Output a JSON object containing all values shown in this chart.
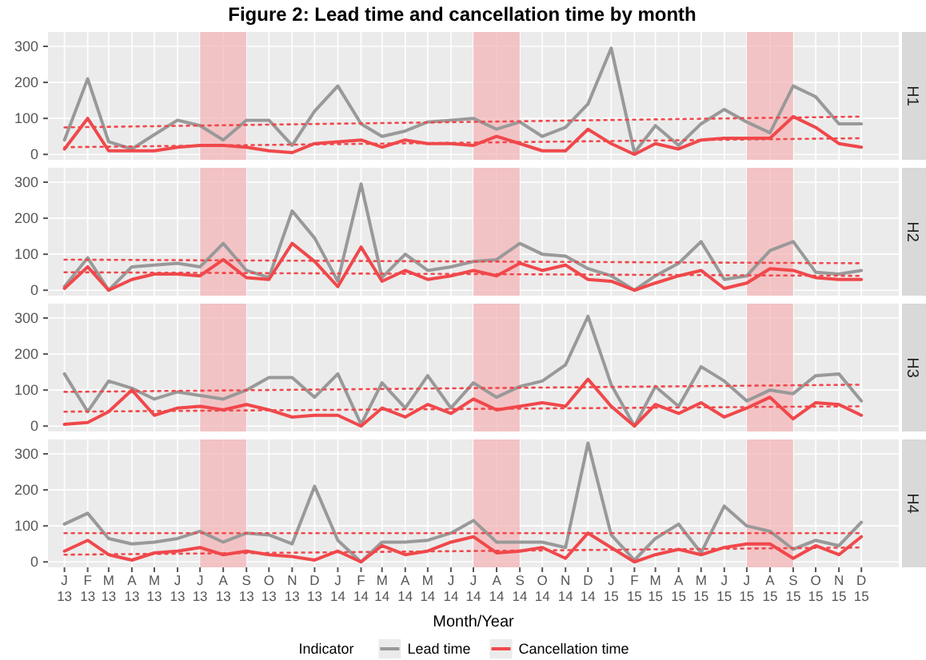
{
  "chart_data": [
    {
      "type": "line",
      "title": "H1",
      "annotations": [
        "Figure 2: Lead time and cancellation time by month"
      ],
      "x": [
        "2013-01",
        "2013-02",
        "2013-03",
        "2013-04",
        "2013-05",
        "2013-06",
        "2013-07",
        "2013-08",
        "2013-09",
        "2013-10",
        "2013-11",
        "2013-12",
        "2014-01",
        "2014-02",
        "2014-03",
        "2014-04",
        "2014-05",
        "2014-06",
        "2014-07",
        "2014-08",
        "2014-09",
        "2014-10",
        "2014-11",
        "2014-12",
        "2015-01",
        "2015-02",
        "2015-03",
        "2015-04",
        "2015-05",
        "2015-06",
        "2015-07",
        "2015-08",
        "2015-09",
        "2015-10",
        "2015-11",
        "2015-12"
      ],
      "xlim": [
        "2012-12-10",
        "2016-01-20"
      ],
      "ylim": [
        -15,
        340
      ],
      "yticks": [
        0,
        100,
        200,
        300
      ],
      "grid": true,
      "legend": false,
      "tick_labels": "y",
      "bands": [
        {
          "axis": "x",
          "from": "2013-07",
          "to": "2013-09",
          "color": "#f4b6b8"
        },
        {
          "axis": "x",
          "from": "2014-07",
          "to": "2014-09",
          "color": "#f4b6b8"
        },
        {
          "axis": "x",
          "from": "2015-07",
          "to": "2015-09",
          "color": "#f4b6b8"
        }
      ],
      "series": [
        {
          "color": "#999999",
          "values": [
            40,
            210,
            35,
            15,
            55,
            95,
            80,
            40,
            95,
            95,
            25,
            120,
            190,
            85,
            50,
            65,
            90,
            95,
            100,
            70,
            90,
            50,
            75,
            140,
            295,
            5,
            80,
            25,
            85,
            125,
            90,
            60,
            190,
            160,
            85,
            85
          ]
        },
        {
          "color": "#f0484b",
          "values": [
            15,
            100,
            10,
            10,
            10,
            20,
            25,
            25,
            20,
            10,
            5,
            30,
            35,
            40,
            20,
            40,
            30,
            30,
            25,
            50,
            30,
            10,
            10,
            70,
            30,
            0,
            30,
            15,
            40,
            45,
            45,
            45,
            105,
            75,
            30,
            20
          ]
        },
        {
          "color": "#f0484b",
          "line_style": "dotted",
          "x": [
            "2013-01",
            "2015-12"
          ],
          "values": [
            75,
            105
          ]
        },
        {
          "color": "#f0484b",
          "line_style": "dotted",
          "x": [
            "2013-01",
            "2015-12"
          ],
          "values": [
            20,
            45
          ]
        }
      ]
    },
    {
      "type": "line",
      "title": "H2",
      "x": [
        "2013-01",
        "2013-02",
        "2013-03",
        "2013-04",
        "2013-05",
        "2013-06",
        "2013-07",
        "2013-08",
        "2013-09",
        "2013-10",
        "2013-11",
        "2013-12",
        "2014-01",
        "2014-02",
        "2014-03",
        "2014-04",
        "2014-05",
        "2014-06",
        "2014-07",
        "2014-08",
        "2014-09",
        "2014-10",
        "2014-11",
        "2014-12",
        "2015-01",
        "2015-02",
        "2015-03",
        "2015-04",
        "2015-05",
        "2015-06",
        "2015-07",
        "2015-08",
        "2015-09",
        "2015-10",
        "2015-11",
        "2015-12"
      ],
      "xlim": [
        "2012-12-10",
        "2016-01-20"
      ],
      "ylim": [
        -15,
        340
      ],
      "yticks": [
        0,
        100,
        200,
        300
      ],
      "grid": true,
      "legend": false,
      "tick_labels": "y",
      "bands": [
        {
          "axis": "x",
          "from": "2013-07",
          "to": "2013-09",
          "color": "#f4b6b8"
        },
        {
          "axis": "x",
          "from": "2014-07",
          "to": "2014-09",
          "color": "#f4b6b8"
        },
        {
          "axis": "x",
          "from": "2015-07",
          "to": "2015-09",
          "color": "#f4b6b8"
        }
      ],
      "series": [
        {
          "color": "#999999",
          "values": [
            10,
            90,
            0,
            65,
            70,
            75,
            65,
            130,
            55,
            35,
            220,
            145,
            25,
            295,
            35,
            100,
            55,
            65,
            80,
            85,
            130,
            100,
            95,
            60,
            40,
            0,
            40,
            75,
            135,
            30,
            40,
            110,
            135,
            50,
            45,
            55
          ]
        },
        {
          "color": "#f0484b",
          "values": [
            5,
            65,
            0,
            30,
            45,
            45,
            40,
            85,
            35,
            30,
            130,
            80,
            10,
            120,
            25,
            55,
            30,
            40,
            55,
            40,
            75,
            55,
            70,
            30,
            25,
            0,
            20,
            40,
            55,
            5,
            20,
            60,
            55,
            35,
            30,
            30
          ]
        },
        {
          "color": "#f0484b",
          "line_style": "dotted",
          "x": [
            "2013-01",
            "2015-12"
          ],
          "values": [
            85,
            75
          ]
        },
        {
          "color": "#f0484b",
          "line_style": "dotted",
          "x": [
            "2013-01",
            "2015-12"
          ],
          "values": [
            50,
            40
          ]
        }
      ]
    },
    {
      "type": "line",
      "title": "H3",
      "x": [
        "2013-01",
        "2013-02",
        "2013-03",
        "2013-04",
        "2013-05",
        "2013-06",
        "2013-07",
        "2013-08",
        "2013-09",
        "2013-10",
        "2013-11",
        "2013-12",
        "2014-01",
        "2014-02",
        "2014-03",
        "2014-04",
        "2014-05",
        "2014-06",
        "2014-07",
        "2014-08",
        "2014-09",
        "2014-10",
        "2014-11",
        "2014-12",
        "2015-01",
        "2015-02",
        "2015-03",
        "2015-04",
        "2015-05",
        "2015-06",
        "2015-07",
        "2015-08",
        "2015-09",
        "2015-10",
        "2015-11",
        "2015-12"
      ],
      "xlim": [
        "2012-12-10",
        "2016-01-20"
      ],
      "ylim": [
        -15,
        340
      ],
      "yticks": [
        0,
        100,
        200,
        300
      ],
      "grid": true,
      "legend": false,
      "tick_labels": "y",
      "bands": [
        {
          "axis": "x",
          "from": "2013-07",
          "to": "2013-09",
          "color": "#f4b6b8"
        },
        {
          "axis": "x",
          "from": "2014-07",
          "to": "2014-09",
          "color": "#f4b6b8"
        },
        {
          "axis": "x",
          "from": "2015-07",
          "to": "2015-09",
          "color": "#f4b6b8"
        }
      ],
      "series": [
        {
          "color": "#999999",
          "values": [
            145,
            40,
            125,
            105,
            75,
            95,
            85,
            75,
            100,
            135,
            135,
            80,
            145,
            5,
            120,
            50,
            140,
            50,
            120,
            80,
            110,
            125,
            170,
            305,
            115,
            0,
            110,
            55,
            165,
            125,
            70,
            100,
            90,
            140,
            145,
            70
          ]
        },
        {
          "color": "#f0484b",
          "values": [
            5,
            10,
            40,
            100,
            30,
            50,
            55,
            45,
            60,
            45,
            25,
            30,
            30,
            0,
            50,
            25,
            60,
            35,
            75,
            45,
            55,
            65,
            55,
            130,
            55,
            0,
            60,
            35,
            65,
            25,
            50,
            80,
            20,
            65,
            60,
            30
          ]
        },
        {
          "color": "#f0484b",
          "line_style": "dotted",
          "x": [
            "2013-01",
            "2015-12"
          ],
          "values": [
            95,
            115
          ]
        },
        {
          "color": "#f0484b",
          "line_style": "dotted",
          "x": [
            "2013-01",
            "2015-12"
          ],
          "values": [
            40,
            55
          ]
        }
      ]
    },
    {
      "type": "line",
      "title": "H4",
      "xlabel": "Month/Year",
      "legend_title": "Indicator",
      "legend": "bottom",
      "x": [
        "2013-01",
        "2013-02",
        "2013-03",
        "2013-04",
        "2013-05",
        "2013-06",
        "2013-07",
        "2013-08",
        "2013-09",
        "2013-10",
        "2013-11",
        "2013-12",
        "2014-01",
        "2014-02",
        "2014-03",
        "2014-04",
        "2014-05",
        "2014-06",
        "2014-07",
        "2014-08",
        "2014-09",
        "2014-10",
        "2014-11",
        "2014-12",
        "2015-01",
        "2015-02",
        "2015-03",
        "2015-04",
        "2015-05",
        "2015-06",
        "2015-07",
        "2015-08",
        "2015-09",
        "2015-10",
        "2015-11",
        "2015-12"
      ],
      "xlim": [
        "2012-12-10",
        "2016-01-20"
      ],
      "xticks": [
        {
          "value": "2013-01",
          "label": "J 13"
        },
        {
          "value": "2013-02",
          "label": "F 13"
        },
        {
          "value": "2013-03",
          "label": "M 13"
        },
        {
          "value": "2013-04",
          "label": "A 13"
        },
        {
          "value": "2013-05",
          "label": "M 13"
        },
        {
          "value": "2013-06",
          "label": "J 13"
        },
        {
          "value": "2013-07",
          "label": "J 13"
        },
        {
          "value": "2013-08",
          "label": "A 13"
        },
        {
          "value": "2013-09",
          "label": "S 13"
        },
        {
          "value": "2013-10",
          "label": "O 13"
        },
        {
          "value": "2013-11",
          "label": "N 13"
        },
        {
          "value": "2013-12",
          "label": "D 13"
        },
        {
          "value": "2014-01",
          "label": "J 14"
        },
        {
          "value": "2014-02",
          "label": "F 14"
        },
        {
          "value": "2014-03",
          "label": "M 14"
        },
        {
          "value": "2014-04",
          "label": "A 14"
        },
        {
          "value": "2014-05",
          "label": "M 14"
        },
        {
          "value": "2014-06",
          "label": "J 14"
        },
        {
          "value": "2014-07",
          "label": "J 14"
        },
        {
          "value": "2014-08",
          "label": "A 14"
        },
        {
          "value": "2014-09",
          "label": "S 14"
        },
        {
          "value": "2014-10",
          "label": "O 14"
        },
        {
          "value": "2014-11",
          "label": "N 14"
        },
        {
          "value": "2014-12",
          "label": "D 14"
        },
        {
          "value": "2015-01",
          "label": "J 15"
        },
        {
          "value": "2015-02",
          "label": "F 15"
        },
        {
          "value": "2015-03",
          "label": "M 15"
        },
        {
          "value": "2015-04",
          "label": "A 15"
        },
        {
          "value": "2015-05",
          "label": "M 15"
        },
        {
          "value": "2015-06",
          "label": "J 15"
        },
        {
          "value": "2015-07",
          "label": "J 15"
        },
        {
          "value": "2015-08",
          "label": "A 15"
        },
        {
          "value": "2015-09",
          "label": "S 15"
        },
        {
          "value": "2015-10",
          "label": "O 15"
        },
        {
          "value": "2015-11",
          "label": "N 15"
        },
        {
          "value": "2015-12",
          "label": "D 15"
        }
      ],
      "ylim": [
        -15,
        340
      ],
      "yticks": [
        0,
        100,
        200,
        300
      ],
      "grid": true,
      "bands": [
        {
          "axis": "x",
          "from": "2013-07",
          "to": "2013-09",
          "color": "#f4b6b8"
        },
        {
          "axis": "x",
          "from": "2014-07",
          "to": "2014-09",
          "color": "#f4b6b8"
        },
        {
          "axis": "x",
          "from": "2015-07",
          "to": "2015-09",
          "color": "#f4b6b8"
        }
      ],
      "series": [
        {
          "name": "Lead time",
          "color": "#999999",
          "values": [
            105,
            135,
            65,
            50,
            55,
            65,
            85,
            55,
            80,
            75,
            50,
            210,
            60,
            0,
            55,
            55,
            60,
            80,
            115,
            55,
            55,
            55,
            40,
            330,
            75,
            5,
            65,
            105,
            25,
            155,
            100,
            85,
            35,
            60,
            45,
            110
          ]
        },
        {
          "name": "Cancellation time",
          "color": "#f0484b",
          "values": [
            30,
            60,
            20,
            5,
            25,
            30,
            40,
            20,
            30,
            20,
            15,
            5,
            30,
            0,
            45,
            20,
            30,
            55,
            70,
            25,
            30,
            40,
            10,
            80,
            40,
            0,
            20,
            35,
            20,
            40,
            50,
            50,
            10,
            45,
            20,
            70
          ]
        },
        {
          "color": "#f0484b",
          "line_style": "dotted",
          "x": [
            "2013-01",
            "2015-12"
          ],
          "values": [
            80,
            80
          ]
        },
        {
          "color": "#f0484b",
          "line_style": "dotted",
          "x": [
            "2013-01",
            "2015-12"
          ],
          "values": [
            20,
            40
          ]
        }
      ]
    }
  ]
}
